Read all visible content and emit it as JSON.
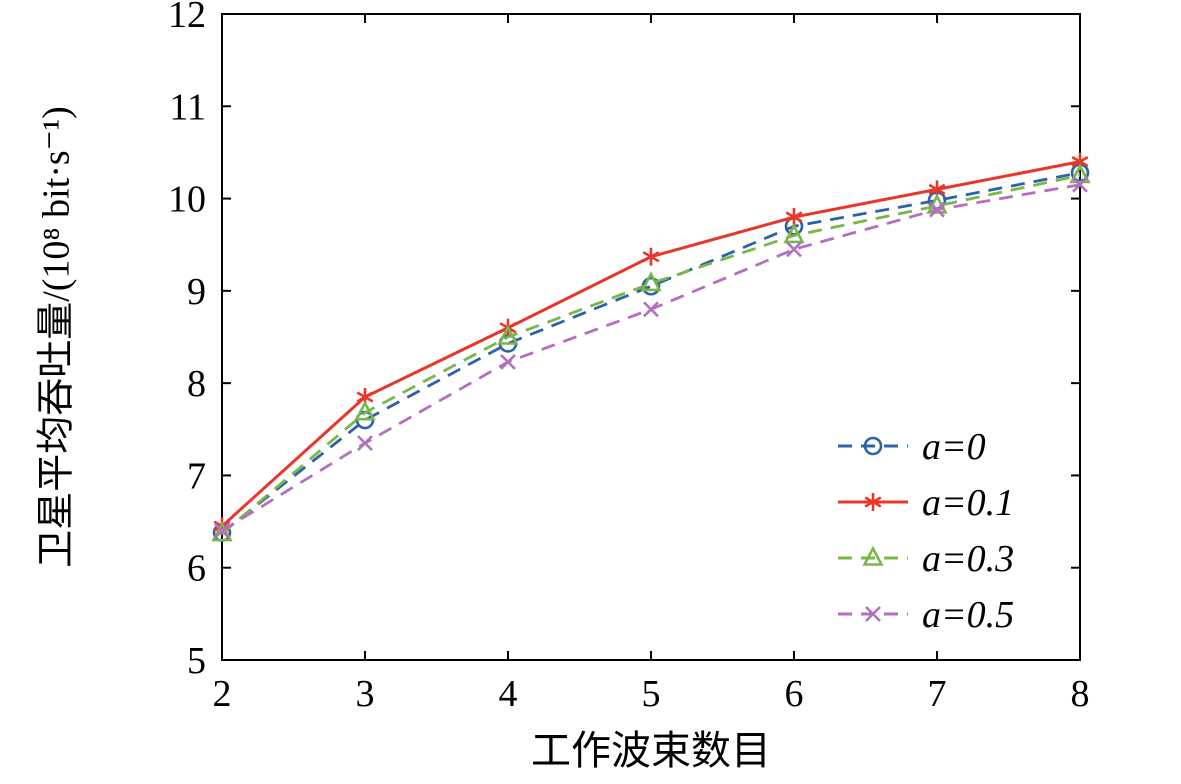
{
  "chart_data": {
    "type": "line",
    "title": "",
    "xlabel": "工作波束数目",
    "ylabel": "卫星平均吞吐量/(10⁸ bit·s⁻¹)",
    "xlim": [
      2,
      8
    ],
    "ylim": [
      5,
      12
    ],
    "xticks": [
      2,
      3,
      4,
      5,
      6,
      7,
      8
    ],
    "yticks": [
      5,
      6,
      7,
      8,
      9,
      10,
      11,
      12
    ],
    "grid": false,
    "legend_position": "inside-right-lower",
    "x": [
      2,
      3,
      4,
      5,
      6,
      7,
      8
    ],
    "series": [
      {
        "name": "a=0",
        "values": [
          6.38,
          7.6,
          8.43,
          9.05,
          9.7,
          9.98,
          10.28
        ],
        "color": "#2c62a8",
        "line": "dashed",
        "marker": "circle"
      },
      {
        "name": "a=0.1",
        "values": [
          6.45,
          7.85,
          8.6,
          9.37,
          9.8,
          10.1,
          10.4
        ],
        "color": "#e8362a",
        "line": "solid",
        "marker": "asterisk"
      },
      {
        "name": "a=0.3",
        "values": [
          6.37,
          7.68,
          8.5,
          9.08,
          9.6,
          9.92,
          10.25
        ],
        "color": "#7ab648",
        "line": "dashed",
        "marker": "triangle"
      },
      {
        "name": "a=0.5",
        "values": [
          6.4,
          7.35,
          8.23,
          8.8,
          9.45,
          9.88,
          10.15
        ],
        "color": "#b46fc0",
        "line": "dashed",
        "marker": "x"
      }
    ]
  }
}
